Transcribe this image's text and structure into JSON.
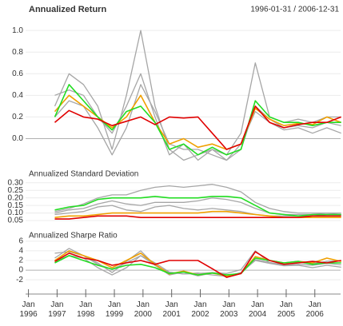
{
  "chart_data": [
    {
      "type": "line",
      "title": "Annualized Return",
      "subtitle": "1996-01-31 / 2006-12-31",
      "x": [
        1996.92,
        1997.42,
        1997.92,
        1998.42,
        1998.92,
        1999.42,
        1999.92,
        2000.42,
        2000.92,
        2001.42,
        2001.92,
        2002.42,
        2002.92,
        2003.42,
        2003.92,
        2004.42,
        2004.92,
        2005.42,
        2005.92,
        2006.42,
        2006.92
      ],
      "xlim": [
        1995.9,
        2006.9
      ],
      "ylim": [
        -0.27,
        1.06
      ],
      "yticks": [
        {
          "value": 0,
          "label": "0.0"
        },
        0.2,
        0.4,
        0.6,
        0.8,
        {
          "value": 1,
          "label": "1.0"
        }
      ],
      "grid": true,
      "series": [
        {
          "color": "#a6a6a6",
          "values": [
            0.3,
            0.6,
            0.5,
            0.3,
            -0.1,
            0.4,
            1.0,
            0.3,
            -0.1,
            -0.2,
            -0.15,
            -0.1,
            -0.15,
            0.05,
            0.7,
            0.2,
            0.15,
            0.18,
            0.15,
            0.2,
            0.2
          ]
        },
        {
          "color": "#a6a6a6",
          "values": [
            0.4,
            0.45,
            0.4,
            0.2,
            0.05,
            0.3,
            0.6,
            0.2,
            -0.15,
            -0.05,
            -0.2,
            -0.1,
            -0.2,
            -0.1,
            0.3,
            0.18,
            0.1,
            0.12,
            0.1,
            0.15,
            0.12
          ]
        },
        {
          "color": "#a6a6a6",
          "values": [
            0.2,
            0.35,
            0.3,
            0.1,
            -0.15,
            0.1,
            0.5,
            0.25,
            -0.05,
            -0.1,
            -0.1,
            -0.15,
            -0.2,
            -0.05,
            0.25,
            0.15,
            0.08,
            0.1,
            0.05,
            0.1,
            0.05
          ]
        },
        {
          "color": "#f0a000",
          "values": [
            0.25,
            0.4,
            0.3,
            0.2,
            0.1,
            0.2,
            0.4,
            0.15,
            -0.05,
            0,
            -0.08,
            -0.05,
            -0.1,
            -0.05,
            0.28,
            0.18,
            0.12,
            0.14,
            0.13,
            0.2,
            0.15
          ]
        },
        {
          "color": "#22dd22",
          "values": [
            0.2,
            0.5,
            0.35,
            0.2,
            0.08,
            0.25,
            0.3,
            0.15,
            -0.1,
            -0.05,
            -0.15,
            -0.08,
            -0.15,
            -0.1,
            0.35,
            0.2,
            0.15,
            0.15,
            0.12,
            0.15,
            0.15
          ]
        },
        {
          "color": "#e00000",
          "values": [
            0.15,
            0.26,
            0.2,
            0.18,
            0.12,
            0.16,
            0.2,
            0.13,
            0.2,
            0.19,
            0.2,
            0.05,
            -0.1,
            -0.05,
            0.3,
            0.15,
            0.1,
            0.13,
            0.15,
            0.15,
            0.2
          ]
        }
      ]
    },
    {
      "type": "line",
      "title": "Annualized Standard Deviation",
      "x": [
        1996.92,
        1997.42,
        1997.92,
        1998.42,
        1998.92,
        1999.42,
        1999.92,
        2000.42,
        2000.92,
        2001.42,
        2001.92,
        2002.42,
        2002.92,
        2003.42,
        2003.92,
        2004.42,
        2004.92,
        2005.42,
        2005.92,
        2006.42,
        2006.92
      ],
      "xlim": [
        1995.9,
        2006.9
      ],
      "ylim": [
        0.013,
        0.32
      ],
      "yticks": [
        0.05,
        {
          "value": 0.1,
          "label": "0.10"
        },
        0.15,
        {
          "value": 0.2,
          "label": "0.20"
        },
        0.25,
        {
          "value": 0.3,
          "label": "0.30"
        }
      ],
      "grid": true,
      "series": [
        {
          "color": "#a6a6a6",
          "values": [
            0.11,
            0.13,
            0.16,
            0.2,
            0.22,
            0.22,
            0.25,
            0.27,
            0.28,
            0.27,
            0.28,
            0.29,
            0.27,
            0.24,
            0.17,
            0.13,
            0.11,
            0.1,
            0.1,
            0.1,
            0.09
          ]
        },
        {
          "color": "#a6a6a6",
          "values": [
            0.1,
            0.12,
            0.13,
            0.16,
            0.18,
            0.16,
            0.15,
            0.17,
            0.17,
            0.17,
            0.18,
            0.2,
            0.19,
            0.17,
            0.13,
            0.1,
            0.09,
            0.09,
            0.09,
            0.1,
            0.1
          ]
        },
        {
          "color": "#a6a6a6",
          "values": [
            0.09,
            0.1,
            0.11,
            0.14,
            0.15,
            0.12,
            0.11,
            0.14,
            0.15,
            0.13,
            0.12,
            0.13,
            0.12,
            0.11,
            0.09,
            0.08,
            0.08,
            0.08,
            0.08,
            0.09,
            0.09
          ]
        },
        {
          "color": "#f0a000",
          "values": [
            0.07,
            0.08,
            0.08,
            0.09,
            0.1,
            0.1,
            0.1,
            0.1,
            0.1,
            0.1,
            0.1,
            0.11,
            0.11,
            0.1,
            0.09,
            0.08,
            0.07,
            0.07,
            0.07,
            0.07,
            0.07
          ]
        },
        {
          "color": "#22dd22",
          "values": [
            0.12,
            0.14,
            0.15,
            0.19,
            0.2,
            0.2,
            0.2,
            0.21,
            0.2,
            0.2,
            0.2,
            0.21,
            0.21,
            0.2,
            0.15,
            0.1,
            0.09,
            0.08,
            0.09,
            0.09,
            0.09
          ]
        },
        {
          "color": "#e00000",
          "values": [
            0.06,
            0.06,
            0.07,
            0.08,
            0.08,
            0.08,
            0.07,
            0.07,
            0.07,
            0.07,
            0.07,
            0.07,
            0.07,
            0.07,
            0.07,
            0.07,
            0.07,
            0.07,
            0.08,
            0.08,
            0.08
          ]
        }
      ]
    },
    {
      "type": "line",
      "title": "Annualized Sharpe Ratio",
      "x": [
        1996.92,
        1997.42,
        1997.92,
        1998.42,
        1998.92,
        1999.42,
        1999.92,
        2000.42,
        2000.92,
        2001.42,
        2001.92,
        2002.42,
        2002.92,
        2003.42,
        2003.92,
        2004.42,
        2004.92,
        2005.42,
        2005.92,
        2006.42,
        2006.92
      ],
      "xlim": [
        1995.9,
        2006.9
      ],
      "ylim": [
        -3.3,
        6.3
      ],
      "yticks": [
        -2,
        0,
        2,
        4,
        6
      ],
      "grid": true,
      "xticks": [
        {
          "value": 1996,
          "label": "Jan 1996"
        },
        {
          "value": 1997,
          "label": "Jan 1997"
        },
        {
          "value": 1998,
          "label": "Jan 1998"
        },
        {
          "value": 1999,
          "label": "Jan 1999"
        },
        {
          "value": 2000,
          "label": "Jan 2000"
        },
        {
          "value": 2001,
          "label": "Jan 2001"
        },
        {
          "value": 2002,
          "label": "Jan 2002"
        },
        {
          "value": 2003,
          "label": "Jan 2003"
        },
        {
          "value": 2004,
          "label": "Jan 2004"
        },
        {
          "value": 2005,
          "label": "Jan 2005"
        },
        {
          "value": 2006,
          "label": "Jan 2006"
        }
      ],
      "series": [
        {
          "color": "#a6a6a6",
          "values": [
            2.5,
            4.5,
            3,
            1.5,
            -0.5,
            1.8,
            4,
            1,
            -0.5,
            -0.8,
            -0.7,
            -0.5,
            -0.7,
            0.1,
            4,
            1.5,
            1.2,
            1.6,
            1.3,
            1.8,
            2
          ]
        },
        {
          "color": "#a6a6a6",
          "values": [
            3.5,
            3.8,
            3,
            1.2,
            0.2,
            1.5,
            3,
            1,
            -1,
            -0.4,
            -1.2,
            -0.6,
            -1.1,
            -0.7,
            2.2,
            1.6,
            1,
            1.2,
            1,
            1.4,
            1.1
          ]
        },
        {
          "color": "#a6a6a6",
          "values": [
            1.8,
            3,
            2.5,
            0.5,
            -1,
            0.5,
            3,
            1.5,
            -0.4,
            -0.8,
            -0.6,
            -1,
            -1.3,
            -0.5,
            2,
            1.4,
            0.9,
            1,
            0.5,
            1,
            0.6
          ]
        },
        {
          "color": "#f0a000",
          "values": [
            2,
            4,
            3,
            2,
            0.5,
            2,
            3.5,
            1.2,
            -0.8,
            -0.2,
            -1,
            -0.6,
            -1.2,
            -0.7,
            2.8,
            2,
            1.5,
            1.8,
            1.5,
            2.5,
            1.8
          ]
        },
        {
          "color": "#22dd22",
          "values": [
            1.5,
            3,
            2,
            1,
            0.2,
            1,
            1.2,
            0.5,
            -0.7,
            -0.4,
            -1,
            -0.6,
            -1,
            -0.7,
            2.5,
            2,
            1.5,
            1.8,
            1.2,
            1.5,
            1.5
          ]
        },
        {
          "color": "#e00000",
          "values": [
            1.8,
            3.5,
            2.5,
            2,
            1,
            1.5,
            2,
            1.2,
            2,
            2,
            2,
            0.3,
            -1.5,
            -0.7,
            3.8,
            2,
            1.2,
            1.5,
            1.8,
            1.5,
            2
          ]
        }
      ]
    }
  ]
}
